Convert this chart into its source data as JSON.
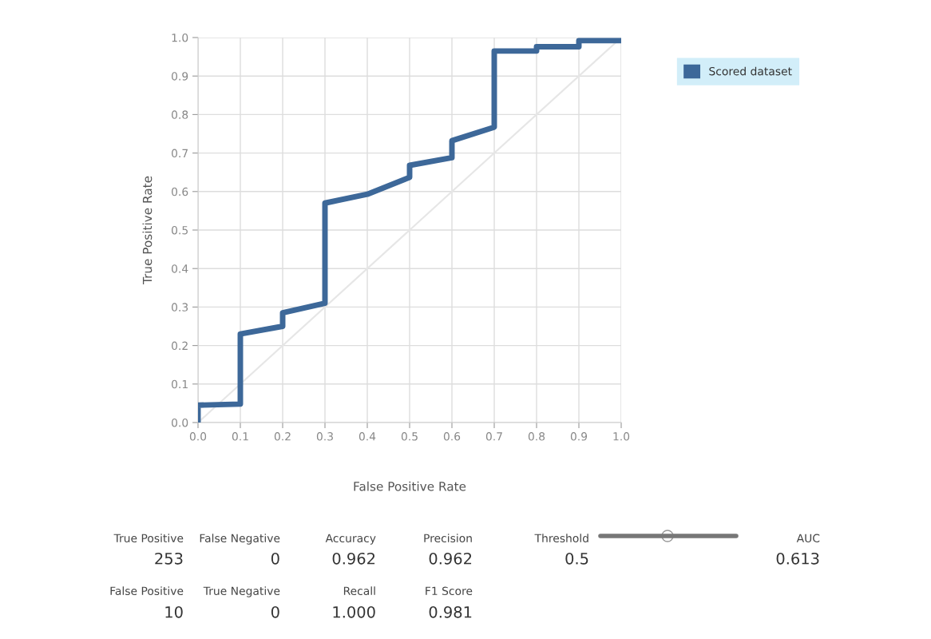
{
  "chart_data": {
    "type": "line",
    "xlabel": "False Positive Rate",
    "ylabel": "True Positive Rate",
    "series": [
      {
        "name": "Scored dataset",
        "color": "#3d6899",
        "x": [
          0,
          0,
          0.1,
          0.1,
          0.2,
          0.2,
          0.3,
          0.3,
          0.4,
          0.5,
          0.5,
          0.6,
          0.6,
          0.7,
          0.7,
          0.8,
          0.8,
          0.9,
          0.9,
          1.0
        ],
        "values": [
          0,
          0.045,
          0.048,
          0.23,
          0.25,
          0.285,
          0.31,
          0.57,
          0.593,
          0.637,
          0.668,
          0.688,
          0.732,
          0.767,
          0.965,
          0.965,
          0.976,
          0.976,
          0.992,
          0.992
        ]
      },
      {
        "color": "#e6e6e6",
        "x": [
          0,
          1
        ],
        "values": [
          0,
          1
        ]
      }
    ],
    "xlim": [
      0,
      1
    ],
    "ylim": [
      0,
      1
    ],
    "xticks": [
      {
        "value": 0,
        "label": "0.0"
      },
      0.1,
      0.2,
      0.3,
      0.4,
      0.5,
      0.6,
      0.7,
      0.8,
      0.9,
      {
        "value": 1,
        "label": "1.0"
      }
    ],
    "yticks": [
      {
        "value": 0,
        "label": "0.0"
      },
      0.1,
      0.2,
      0.3,
      0.4,
      0.5,
      0.6,
      0.7,
      0.8,
      0.9,
      {
        "value": 1,
        "label": "1.0"
      }
    ],
    "grid": true,
    "legend": "top right",
    "marker": "none",
    "line_style": "solid",
    "annotations": [
      "True Positive",
      "253",
      "False Negative",
      "0",
      "Accuracy",
      "0.962",
      "Precision",
      "0.962",
      "Threshold",
      "0.5",
      "AUC",
      "0.613",
      "False Positive",
      "10",
      "True Negative",
      "0",
      "Recall",
      "1.000",
      "F1 Score",
      "0.981"
    ]
  }
}
